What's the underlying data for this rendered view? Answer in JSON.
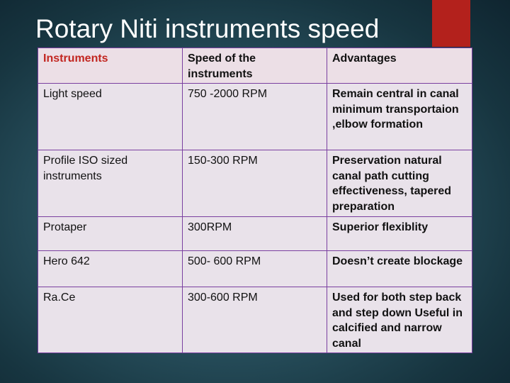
{
  "title": "Rotary Niti instruments speed",
  "colors": {
    "accent": "#b3211c",
    "header_red": "#c22620",
    "border": "#7a3fa0"
  },
  "table": {
    "headers": [
      "Instruments",
      "Speed of the instruments",
      "Advantages"
    ],
    "rows": [
      {
        "instrument": "Light speed",
        "speed": "750 -2000 RPM",
        "advantages": "Remain central in canal minimum transportaion ,elbow formation"
      },
      {
        "instrument": "Profile ISO sized instruments",
        "speed": "150-300 RPM",
        "advantages": "Preservation natural canal path cutting effectiveness, tapered preparation"
      },
      {
        "instrument": "Protaper",
        "speed": "300RPM",
        "advantages": "Superior flexiblity"
      },
      {
        "instrument": "Hero 642",
        "speed": "500- 600 RPM",
        "advantages": "Doesn’t create blockage"
      },
      {
        "instrument": "Ra.Ce",
        "speed": "300-600 RPM",
        "advantages": "Used for both step back and step down Useful in calcified and narrow canal"
      }
    ]
  }
}
